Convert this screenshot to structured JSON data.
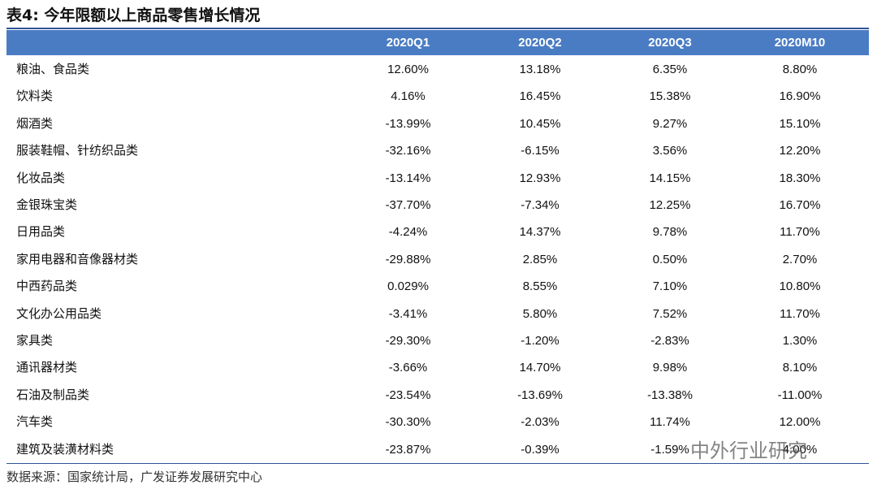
{
  "header": {
    "title": "表4:  今年限额以上商品零售增长情况"
  },
  "table": {
    "columns": [
      "",
      "2020Q1",
      "2020Q2",
      "2020Q3",
      "2020M10"
    ],
    "rows": [
      [
        "粮油、食品类",
        "12.60%",
        "13.18%",
        "6.35%",
        "8.80%"
      ],
      [
        "饮料类",
        "4.16%",
        "16.45%",
        "15.38%",
        "16.90%"
      ],
      [
        "烟酒类",
        "-13.99%",
        "10.45%",
        "9.27%",
        "15.10%"
      ],
      [
        "服装鞋帽、针纺织品类",
        "-32.16%",
        "-6.15%",
        "3.56%",
        "12.20%"
      ],
      [
        "化妆品类",
        "-13.14%",
        "12.93%",
        "14.15%",
        "18.30%"
      ],
      [
        "金银珠宝类",
        "-37.70%",
        "-7.34%",
        "12.25%",
        "16.70%"
      ],
      [
        "日用品类",
        "-4.24%",
        "14.37%",
        "9.78%",
        "11.70%"
      ],
      [
        "家用电器和音像器材类",
        "-29.88%",
        "2.85%",
        "0.50%",
        "2.70%"
      ],
      [
        "中西药品类",
        "0.029%",
        "8.55%",
        "7.10%",
        "10.80%"
      ],
      [
        "文化办公用品类",
        "-3.41%",
        "5.80%",
        "7.52%",
        "11.70%"
      ],
      [
        "家具类",
        "-29.30%",
        "-1.20%",
        "-2.83%",
        "1.30%"
      ],
      [
        "通讯器材类",
        "-3.66%",
        "14.70%",
        "9.98%",
        "8.10%"
      ],
      [
        "石油及制品类",
        "-23.54%",
        "-13.69%",
        "-13.38%",
        "-11.00%"
      ],
      [
        "汽车类",
        "-30.30%",
        "-2.03%",
        "11.74%",
        "12.00%"
      ],
      [
        "建筑及装潢材料类",
        "-23.87%",
        "-0.39%",
        "-1.59%",
        "4.00%"
      ]
    ]
  },
  "footer": {
    "source": "数据来源：国家统计局，广发证券发展研究中心"
  },
  "watermark": "中外行业研究"
}
